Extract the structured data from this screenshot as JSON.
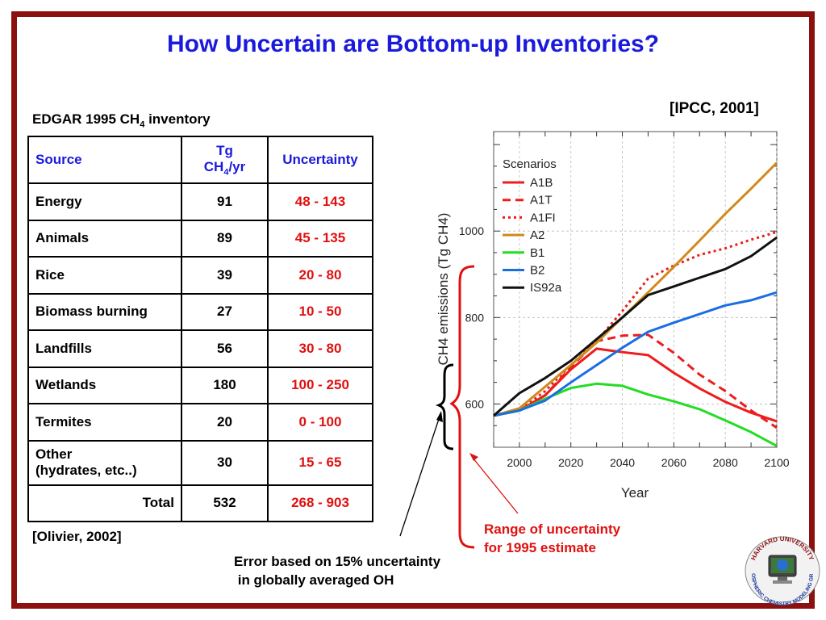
{
  "title": "How Uncertain are Bottom-up Inventories?",
  "table_caption": {
    "prefix": "EDGAR 1995 CH",
    "sub": "4",
    "suffix": " inventory"
  },
  "ipcc_ref": "[IPCC, 2001]",
  "olivier_ref": "[Olivier, 2002]",
  "table": {
    "headers": {
      "source": "Source",
      "tg_line1": "Tg",
      "tg_line2_prefix": "CH",
      "tg_line2_sub": "4",
      "tg_line2_suffix": "/yr",
      "uncertainty": "Uncertainty"
    },
    "rows": [
      {
        "source": "Energy",
        "tg": "91",
        "uncertainty": "48 - 143"
      },
      {
        "source": "Animals",
        "tg": "89",
        "uncertainty": "45 - 135"
      },
      {
        "source": "Rice",
        "tg": "39",
        "uncertainty": "20 - 80"
      },
      {
        "source": "Biomass burning",
        "tg": "27",
        "uncertainty": "10 - 50"
      },
      {
        "source": "Landfills",
        "tg": "56",
        "uncertainty": "30 - 80"
      },
      {
        "source": "Wetlands",
        "tg": "180",
        "uncertainty": "100 - 250"
      },
      {
        "source": "Termites",
        "tg": "20",
        "uncertainty": "0 - 100"
      }
    ],
    "other_row": {
      "source_line1": "Other",
      "source_line2": "(hydrates, etc..)",
      "tg": "30",
      "uncertainty": "15 - 65"
    },
    "total_row": {
      "label": "Total",
      "tg": "532",
      "uncertainty": "268 - 903"
    }
  },
  "annotations": {
    "range_line1": "Range of uncertainty",
    "range_line2": "for 1995 estimate",
    "error_line1": "Error based on 15% uncertainty",
    "error_line2": " in globally averaged OH"
  },
  "logo": {
    "top_text": "HARVARD UNIVERSITY",
    "bottom_text": "ATMOSPHERIC CHEMISTRY MODELING GROUP"
  },
  "colors": {
    "frame": "#8b1010",
    "title": "#1a1adc",
    "uncertainty": "#e01010"
  },
  "chart_data": {
    "type": "line",
    "xlabel": "Year",
    "ylabel": "CH4 emissions (Tg CH4)",
    "xlim": [
      1990,
      2100
    ],
    "ylim": [
      500,
      1230
    ],
    "xticks": [
      2000,
      2020,
      2040,
      2060,
      2080,
      2100
    ],
    "yticks": [
      600,
      800,
      1000
    ],
    "legend_title": "Scenarios",
    "legend_position": "top-left",
    "series": [
      {
        "name": "A1B",
        "color": "#ee1c1c",
        "dash": "solid",
        "x": [
          1990,
          2000,
          2010,
          2020,
          2030,
          2040,
          2050,
          2060,
          2070,
          2080,
          2090,
          2100
        ],
        "y": [
          573,
          585,
          620,
          680,
          728,
          720,
          713,
          672,
          636,
          605,
          580,
          560
        ]
      },
      {
        "name": "A1T",
        "color": "#ee1c1c",
        "dash": "dashed",
        "x": [
          1990,
          2000,
          2010,
          2020,
          2030,
          2040,
          2050,
          2060,
          2070,
          2080,
          2090,
          2100
        ],
        "y": [
          573,
          585,
          620,
          685,
          745,
          758,
          760,
          718,
          668,
          630,
          585,
          545
        ]
      },
      {
        "name": "A1FI",
        "color": "#ee1c1c",
        "dash": "dotted",
        "x": [
          1990,
          2000,
          2010,
          2020,
          2030,
          2040,
          2050,
          2060,
          2070,
          2080,
          2090,
          2100
        ],
        "y": [
          573,
          585,
          630,
          690,
          745,
          815,
          890,
          920,
          945,
          960,
          980,
          998
        ]
      },
      {
        "name": "A2",
        "color": "#d08a1a",
        "dash": "solid",
        "x": [
          1990,
          2000,
          2010,
          2020,
          2030,
          2040,
          2050,
          2060,
          2070,
          2080,
          2090,
          2100
        ],
        "y": [
          573,
          590,
          640,
          690,
          742,
          800,
          858,
          917,
          978,
          1040,
          1098,
          1158
        ]
      },
      {
        "name": "B1",
        "color": "#22dd22",
        "dash": "solid",
        "x": [
          1990,
          2000,
          2010,
          2020,
          2030,
          2040,
          2050,
          2060,
          2070,
          2080,
          2090,
          2100
        ],
        "y": [
          573,
          585,
          612,
          637,
          647,
          642,
          622,
          606,
          588,
          562,
          535,
          503
        ]
      },
      {
        "name": "B2",
        "color": "#1a6ee0",
        "dash": "solid",
        "x": [
          1990,
          2000,
          2010,
          2020,
          2030,
          2040,
          2050,
          2060,
          2070,
          2080,
          2090,
          2100
        ],
        "y": [
          573,
          585,
          608,
          650,
          690,
          730,
          767,
          788,
          808,
          828,
          840,
          858
        ]
      },
      {
        "name": "IS92a",
        "color": "#111111",
        "dash": "solid",
        "x": [
          1990,
          2000,
          2010,
          2020,
          2030,
          2040,
          2050,
          2060,
          2070,
          2080,
          2090,
          2100
        ],
        "y": [
          573,
          625,
          660,
          700,
          750,
          800,
          852,
          872,
          892,
          912,
          942,
          985
        ]
      }
    ]
  }
}
